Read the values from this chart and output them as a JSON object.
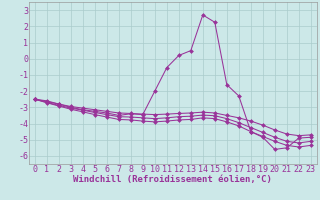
{
  "background_color": "#cce8e8",
  "grid_color": "#aacccc",
  "line_color": "#993399",
  "marker_color": "#993399",
  "xlabel": "Windchill (Refroidissement éolien,°C)",
  "xlabel_fontsize": 6.5,
  "tick_fontsize": 6,
  "xlim": [
    -0.5,
    23.5
  ],
  "ylim": [
    -6.5,
    3.5
  ],
  "yticks": [
    -6,
    -5,
    -4,
    -3,
    -2,
    -1,
    0,
    1,
    2,
    3
  ],
  "xticks": [
    0,
    1,
    2,
    3,
    4,
    5,
    6,
    7,
    8,
    9,
    10,
    11,
    12,
    13,
    14,
    15,
    16,
    17,
    18,
    19,
    20,
    21,
    22,
    23
  ],
  "series1": [
    [
      0,
      -2.5
    ],
    [
      1,
      -2.6
    ],
    [
      2,
      -2.8
    ],
    [
      3,
      -3.0
    ],
    [
      4,
      -3.15
    ],
    [
      5,
      -3.25
    ],
    [
      6,
      -3.35
    ],
    [
      7,
      -3.5
    ],
    [
      8,
      -3.4
    ],
    [
      9,
      -3.45
    ],
    [
      10,
      -2.0
    ],
    [
      11,
      -0.55
    ],
    [
      12,
      0.2
    ],
    [
      13,
      0.5
    ],
    [
      14,
      2.7
    ],
    [
      15,
      2.25
    ],
    [
      16,
      -1.6
    ],
    [
      17,
      -2.3
    ],
    [
      18,
      -4.5
    ],
    [
      19,
      -4.85
    ],
    [
      20,
      -5.6
    ],
    [
      21,
      -5.5
    ],
    [
      22,
      -4.9
    ],
    [
      23,
      -4.85
    ]
  ],
  "series2": [
    [
      0,
      -2.5
    ],
    [
      1,
      -2.65
    ],
    [
      2,
      -2.8
    ],
    [
      3,
      -2.95
    ],
    [
      4,
      -3.05
    ],
    [
      5,
      -3.15
    ],
    [
      6,
      -3.25
    ],
    [
      7,
      -3.35
    ],
    [
      8,
      -3.38
    ],
    [
      9,
      -3.42
    ],
    [
      10,
      -3.45
    ],
    [
      11,
      -3.42
    ],
    [
      12,
      -3.38
    ],
    [
      13,
      -3.35
    ],
    [
      14,
      -3.3
    ],
    [
      15,
      -3.35
    ],
    [
      16,
      -3.5
    ],
    [
      17,
      -3.65
    ],
    [
      18,
      -3.85
    ],
    [
      19,
      -4.1
    ],
    [
      20,
      -4.4
    ],
    [
      21,
      -4.65
    ],
    [
      22,
      -4.75
    ],
    [
      23,
      -4.7
    ]
  ],
  "series3": [
    [
      0,
      -2.5
    ],
    [
      1,
      -2.7
    ],
    [
      2,
      -2.88
    ],
    [
      3,
      -3.05
    ],
    [
      4,
      -3.18
    ],
    [
      5,
      -3.32
    ],
    [
      6,
      -3.45
    ],
    [
      7,
      -3.58
    ],
    [
      8,
      -3.6
    ],
    [
      9,
      -3.65
    ],
    [
      10,
      -3.7
    ],
    [
      11,
      -3.65
    ],
    [
      12,
      -3.58
    ],
    [
      13,
      -3.55
    ],
    [
      14,
      -3.48
    ],
    [
      15,
      -3.52
    ],
    [
      16,
      -3.7
    ],
    [
      17,
      -3.95
    ],
    [
      18,
      -4.25
    ],
    [
      19,
      -4.55
    ],
    [
      20,
      -4.85
    ],
    [
      21,
      -5.1
    ],
    [
      22,
      -5.2
    ],
    [
      23,
      -5.1
    ]
  ],
  "series4": [
    [
      0,
      -2.5
    ],
    [
      1,
      -2.72
    ],
    [
      2,
      -2.92
    ],
    [
      3,
      -3.12
    ],
    [
      4,
      -3.28
    ],
    [
      5,
      -3.45
    ],
    [
      6,
      -3.6
    ],
    [
      7,
      -3.75
    ],
    [
      8,
      -3.78
    ],
    [
      9,
      -3.85
    ],
    [
      10,
      -3.9
    ],
    [
      11,
      -3.85
    ],
    [
      12,
      -3.78
    ],
    [
      13,
      -3.75
    ],
    [
      14,
      -3.65
    ],
    [
      15,
      -3.7
    ],
    [
      16,
      -3.9
    ],
    [
      17,
      -4.15
    ],
    [
      18,
      -4.5
    ],
    [
      19,
      -4.8
    ],
    [
      20,
      -5.1
    ],
    [
      21,
      -5.35
    ],
    [
      22,
      -5.45
    ],
    [
      23,
      -5.35
    ]
  ]
}
